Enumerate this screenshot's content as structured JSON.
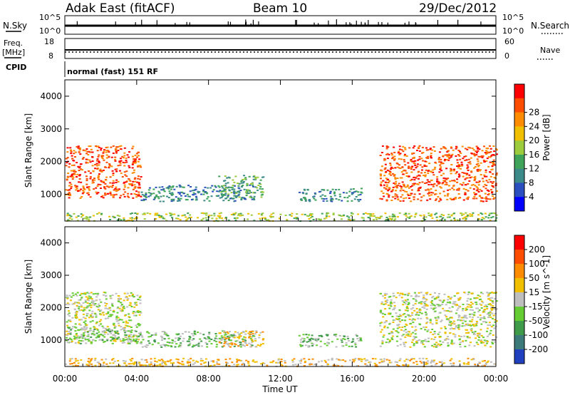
{
  "header": {
    "station": "Adak East (fitACF)",
    "beam": "Beam 10",
    "date": "29/Dec/2012"
  },
  "panels": {
    "nsky": {
      "label": "N.Sky",
      "left_ticks": [
        "10^5",
        "10^0"
      ],
      "right_ticks": [
        "10^5",
        "10^0"
      ],
      "right_label": "N.Search"
    },
    "freq": {
      "label_top": "Freq.",
      "label_unit": "[MHz]",
      "left_ticks": [
        "18",
        "8"
      ],
      "right_ticks": [
        "60",
        "0"
      ],
      "right_label": "Nave"
    },
    "cpid": {
      "label": "CPID",
      "value": "normal (fast) 151 RF"
    }
  },
  "chart_data": [
    {
      "type": "heatmap",
      "quantity": "Power",
      "ylabel": "Slant Range [km]",
      "xlabel": "Time UT",
      "ylim": [
        180,
        4500
      ],
      "yticks": [
        1000,
        2000,
        3000,
        4000
      ],
      "xticks": [
        "00:00",
        "04:00",
        "08:00",
        "12:00",
        "16:00",
        "20:00",
        "00:00"
      ],
      "colorbar": {
        "label": "Power [dB]",
        "ticks": [
          "4",
          "8",
          "12",
          "16",
          "20",
          "24",
          "28"
        ],
        "colors": [
          "#0000ff",
          "#2b4fbf",
          "#3d8a8a",
          "#3fa35a",
          "#9ccc3d",
          "#f0c000",
          "#ff8c00",
          "#ff4d00",
          "#ff0000"
        ]
      },
      "regions": [
        {
          "t0": 0.0,
          "t1": 4.2,
          "r0": 900,
          "r1": 2500,
          "level": 7
        },
        {
          "t0": 4.2,
          "t1": 10.5,
          "r0": 800,
          "r1": 1300,
          "level": 2
        },
        {
          "t0": 8.5,
          "t1": 11.0,
          "r0": 900,
          "r1": 1600,
          "level": 3
        },
        {
          "t0": 13.0,
          "t1": 16.5,
          "r0": 800,
          "r1": 1200,
          "level": 2
        },
        {
          "t0": 17.5,
          "t1": 24.0,
          "r0": 800,
          "r1": 2500,
          "level": 7
        },
        {
          "t0": 0.0,
          "t1": 24.0,
          "r0": 200,
          "r1": 450,
          "level": 4
        }
      ]
    },
    {
      "type": "heatmap",
      "quantity": "Velocity",
      "ylabel": "Slant Range [km]",
      "xlabel": "Time UT",
      "ylim": [
        180,
        4500
      ],
      "yticks": [
        1000,
        2000,
        3000,
        4000
      ],
      "xticks": [
        "00:00",
        "04:00",
        "08:00",
        "12:00",
        "16:00",
        "20:00",
        "00:00"
      ],
      "colorbar": {
        "label": "Velocity [m s^-1]",
        "ticks": [
          "200",
          "100",
          "50",
          "15",
          "-15",
          "-50",
          "-100",
          "-200"
        ],
        "colors": [
          "#2040c0",
          "#3d7a7a",
          "#3f9a4a",
          "#66cc33",
          "#bebebe",
          "#f0c000",
          "#ff8c00",
          "#ff4d00",
          "#ff0000"
        ]
      },
      "regions": [
        {
          "t0": 0.0,
          "t1": 4.2,
          "r0": 900,
          "r1": 2500,
          "level": 4
        },
        {
          "t0": 0.0,
          "t1": 4.2,
          "r0": 900,
          "r1": 1400,
          "level": 3
        },
        {
          "t0": 4.2,
          "t1": 10.5,
          "r0": 800,
          "r1": 1300,
          "level": 3
        },
        {
          "t0": 8.5,
          "t1": 11.0,
          "r0": 800,
          "r1": 1300,
          "level": 5
        },
        {
          "t0": 13.0,
          "t1": 16.5,
          "r0": 800,
          "r1": 1200,
          "level": 3
        },
        {
          "t0": 17.5,
          "t1": 24.0,
          "r0": 800,
          "r1": 2500,
          "level": 4
        },
        {
          "t0": 0.0,
          "t1": 24.0,
          "r0": 200,
          "r1": 450,
          "level": 5
        }
      ]
    }
  ],
  "colors": {
    "axis": "#000000",
    "background": "#ffffff"
  }
}
